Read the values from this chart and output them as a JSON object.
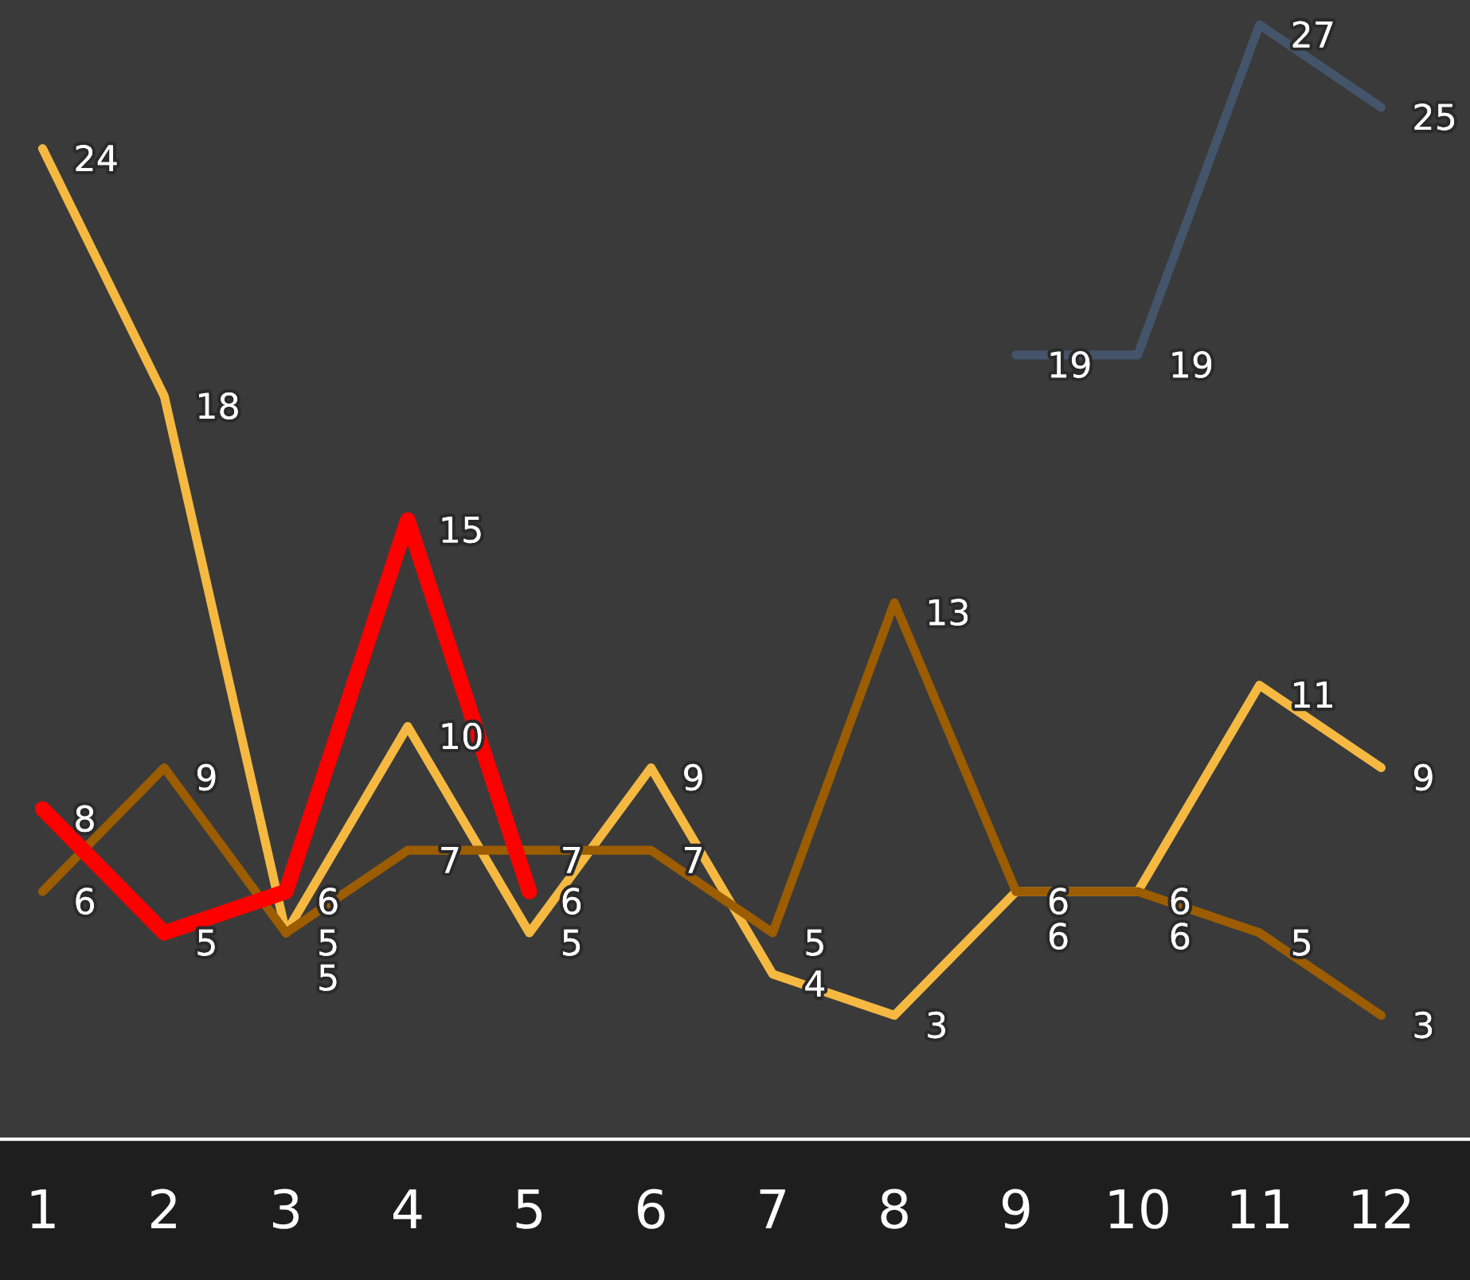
{
  "chart_data": {
    "type": "line",
    "categories": [
      "1",
      "2",
      "3",
      "4",
      "5",
      "6",
      "7",
      "8",
      "9",
      "10",
      "11",
      "12"
    ],
    "series": [
      {
        "color": "#f5b942",
        "values": [
          24,
          18,
          5,
          10,
          5,
          9,
          4,
          3,
          6,
          6,
          11,
          9
        ]
      },
      {
        "color": "#9c5c00",
        "values": [
          6,
          9,
          5,
          7,
          7,
          7,
          5,
          13,
          6,
          6,
          5,
          3
        ]
      },
      {
        "color": "#ff0000",
        "values": [
          8,
          5,
          6,
          15,
          6,
          null,
          null,
          null,
          null,
          null,
          null,
          null
        ]
      },
      {
        "color": "#44546a",
        "values": [
          null,
          null,
          null,
          null,
          null,
          null,
          null,
          null,
          19,
          19,
          27,
          25
        ]
      }
    ],
    "ylim": [
      0,
      27.6
    ],
    "data_labels": true,
    "grid": false,
    "legend": false,
    "marker": "none",
    "line_style": "solid"
  }
}
